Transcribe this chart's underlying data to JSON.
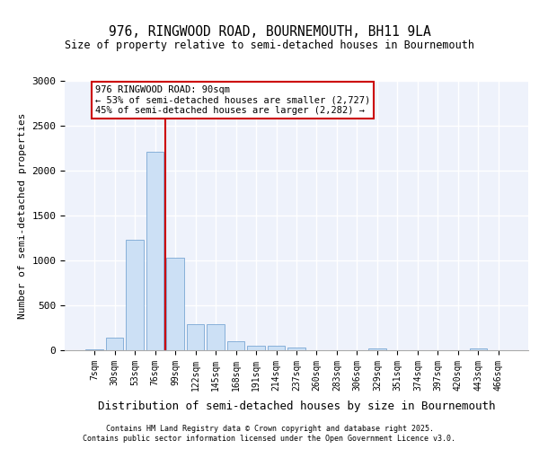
{
  "title1": "976, RINGWOOD ROAD, BOURNEMOUTH, BH11 9LA",
  "title2": "Size of property relative to semi-detached houses in Bournemouth",
  "xlabel": "Distribution of semi-detached houses by size in Bournemouth",
  "ylabel": "Number of semi-detached properties",
  "categories": [
    "7sqm",
    "30sqm",
    "53sqm",
    "76sqm",
    "99sqm",
    "122sqm",
    "145sqm",
    "168sqm",
    "191sqm",
    "214sqm",
    "237sqm",
    "260sqm",
    "283sqm",
    "306sqm",
    "329sqm",
    "351sqm",
    "374sqm",
    "397sqm",
    "420sqm",
    "443sqm",
    "466sqm"
  ],
  "values": [
    15,
    140,
    1230,
    2210,
    1030,
    295,
    295,
    100,
    55,
    55,
    30,
    5,
    0,
    0,
    25,
    0,
    0,
    0,
    0,
    25,
    0
  ],
  "bar_color": "#cce0f5",
  "bar_edge_color": "#6699cc",
  "bg_color": "#eef2fb",
  "grid_color": "#ffffff",
  "vline_x_index": 3,
  "vline_color": "#cc0000",
  "annotation_title": "976 RINGWOOD ROAD: 90sqm",
  "annotation_line2": "← 53% of semi-detached houses are smaller (2,727)",
  "annotation_line3": "45% of semi-detached houses are larger (2,282) →",
  "annotation_box_color": "#ffffff",
  "annotation_edge_color": "#cc0000",
  "ylim": [
    0,
    3000
  ],
  "yticks": [
    0,
    500,
    1000,
    1500,
    2000,
    2500,
    3000
  ],
  "footer_line1": "Contains HM Land Registry data © Crown copyright and database right 2025.",
  "footer_line2": "Contains public sector information licensed under the Open Government Licence v3.0."
}
